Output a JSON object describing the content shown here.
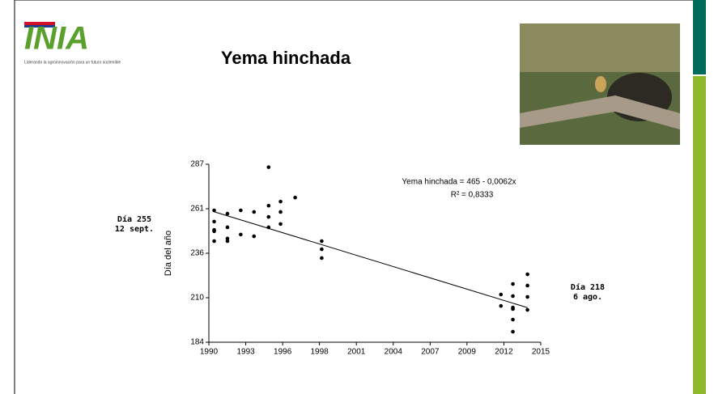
{
  "logo": {
    "name": "INIA",
    "tagline": "Liderando la agroinnovación para un futuro sostenible"
  },
  "chart_data": {
    "type": "scatter",
    "title": "Yema hinchada",
    "y_label": "Día del año",
    "x": [
      1990.4,
      1990.4,
      1990.4,
      1990.4,
      1990.4,
      1991.4,
      1991.4,
      1991.4,
      1991.4,
      1992.4,
      1992.4,
      1993.4,
      1993.4,
      1994.5,
      1994.5,
      1994.5,
      1994.5,
      1995.4,
      1995.4,
      1995.4,
      1996.5,
      1998.5,
      1998.5,
      1998.5,
      2012.0,
      2012.0,
      2012.9,
      2012.9,
      2012.9,
      2012.9,
      2012.9,
      2012.9,
      2014.0,
      2014.0,
      2014.0,
      2014.0
    ],
    "values": [
      260.3,
      253.8,
      249.0,
      248.2,
      242.5,
      258.4,
      250.5,
      244.0,
      242.5,
      260.3,
      246.3,
      259.4,
      245.3,
      285.3,
      263.0,
      256.5,
      250.5,
      265.4,
      259.4,
      252.4,
      267.7,
      242.5,
      237.8,
      232.7,
      211.6,
      205.0,
      217.7,
      210.7,
      204.1,
      203.2,
      197.1,
      190.1,
      223.3,
      216.8,
      210.2,
      202.7
    ],
    "color": "#000000",
    "trendline": {
      "x": [
        1990.4,
        2014.0
      ],
      "y": [
        259.5,
        204.0
      ],
      "equation": "Yema hinchada = 465 - 0,0062x",
      "r2": "R² = 0,8333"
    },
    "xlim": [
      1990,
      2015
    ],
    "xticks": [
      1990,
      {
        "value": 1992.78,
        "label": "1993"
      },
      {
        "value": 1995.56,
        "label": "1996"
      },
      {
        "value": 1998.33,
        "label": "1998"
      },
      {
        "value": 2001.11,
        "label": "2001"
      },
      {
        "value": 2003.89,
        "label": "2004"
      },
      {
        "value": 2006.67,
        "label": "2007"
      },
      {
        "value": 2009.44,
        "label": "2009"
      },
      {
        "value": 2012.22,
        "label": "2012"
      },
      2015
    ],
    "ylim": [
      184,
      287
    ],
    "yticks": [
      184,
      {
        "value": 209.75,
        "label": "210"
      },
      {
        "value": 235.5,
        "label": "236"
      },
      {
        "value": 261.25,
        "label": "261"
      },
      287
    ],
    "annotations": [
      {
        "lines": [
          "Día 255",
          "12 sept."
        ]
      },
      {
        "lines": [
          "Día 218",
          "6 ago."
        ]
      }
    ]
  }
}
